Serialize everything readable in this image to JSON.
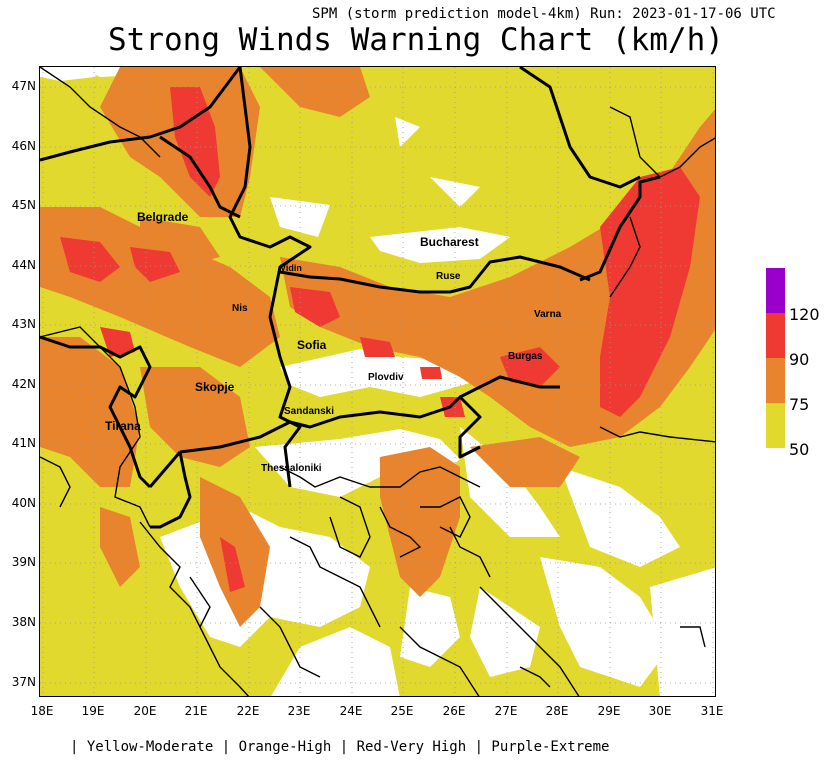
{
  "header": {
    "model_line": "SPM (storm prediction model-4km) Run: 2023-01-17-06 UTC",
    "title": "Strong Winds Warning Chart (km/h)"
  },
  "axes": {
    "lat_labels": [
      "47N",
      "46N",
      "45N",
      "44N",
      "43N",
      "42N",
      "41N",
      "40N",
      "39N",
      "38N",
      "37N"
    ],
    "lon_labels": [
      "18E",
      "19E",
      "20E",
      "21E",
      "22E",
      "23E",
      "24E",
      "25E",
      "26E",
      "27E",
      "28E",
      "29E",
      "30E",
      "31E"
    ]
  },
  "cities": {
    "belgrade": "Belgrade",
    "bucharest": "Bucharest",
    "vidin": "Vidin",
    "ruse": "Ruse",
    "nis": "Nis",
    "varna": "Varna",
    "sofia": "Sofia",
    "burgas": "Burgas",
    "skopje": "Skopje",
    "plovdiv": "Plovdiv",
    "sandanski": "Sandanski",
    "tirana": "Tirana",
    "thessaloniki": "Thessaloniki"
  },
  "legend": {
    "thresholds": [
      "120",
      "90",
      "75",
      "50"
    ],
    "colors": {
      "extreme": "#9900cc",
      "very_high": "#ee3a32",
      "high": "#e8832e",
      "moderate": "#e2d92e"
    }
  },
  "footer": "| Yellow-Moderate | Orange-High | Red-Very High | Purple-Extreme"
}
